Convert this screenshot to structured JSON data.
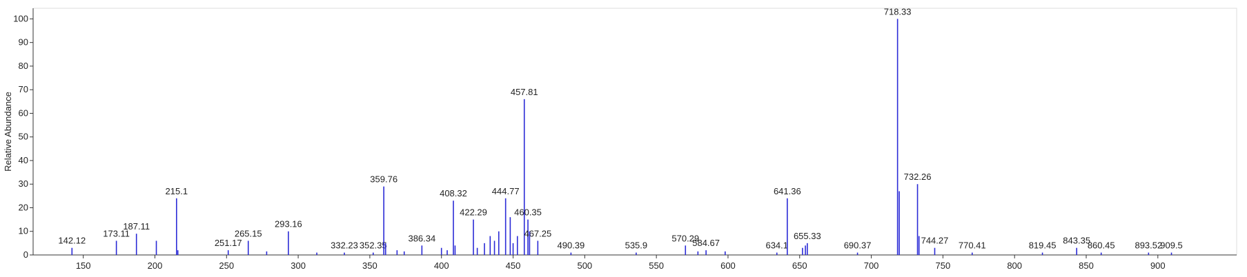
{
  "chart_data": {
    "type": "stem",
    "y_label": "Relative Abundance",
    "xlim": [
      115,
      955
    ],
    "ylim": [
      0,
      104.5
    ],
    "xticks": [
      150,
      200,
      250,
      300,
      350,
      400,
      450,
      500,
      550,
      600,
      650,
      700,
      750,
      800,
      850,
      900
    ],
    "yticks": [
      0,
      10,
      20,
      30,
      40,
      50,
      60,
      70,
      80,
      90,
      100
    ],
    "series": [
      {
        "color": "#2a2ad6",
        "data_labels": true,
        "x": [
          142.12,
          173.11,
          187.11,
          215.1,
          251.17,
          265.15,
          293.16,
          332.23,
          352.35,
          359.76,
          386.34,
          408.32,
          422.29,
          444.77,
          457.81,
          460.35,
          467.25,
          490.39,
          535.9,
          570.29,
          584.67,
          634.1,
          641.36,
          655.33,
          690.37,
          718.33,
          732.26,
          744.27,
          770.41,
          819.45,
          843.35,
          860.45,
          893.52,
          909.5
        ],
        "values": [
          3,
          6,
          9,
          24,
          2,
          6,
          10,
          1,
          1,
          29,
          4,
          23,
          15,
          24,
          66,
          15,
          6,
          1,
          1,
          4,
          2,
          1,
          24,
          5,
          1,
          100,
          30,
          3,
          1,
          1,
          3,
          1,
          1,
          1
        ]
      },
      {
        "color": "#2a2ad6",
        "data_labels": false,
        "x": [
          201,
          216,
          278,
          313,
          361,
          369,
          374,
          400,
          404,
          409.5,
          425,
          430,
          434,
          437,
          440,
          448,
          450,
          453,
          461.5,
          579,
          598,
          652,
          654,
          719.5,
          733.3
        ],
        "values": [
          6,
          2,
          1.5,
          1,
          5,
          2,
          1.5,
          3,
          2,
          4,
          3,
          5,
          8,
          6,
          10,
          16,
          5,
          8,
          10,
          1.5,
          1.5,
          3,
          4,
          27,
          8
        ]
      }
    ]
  }
}
